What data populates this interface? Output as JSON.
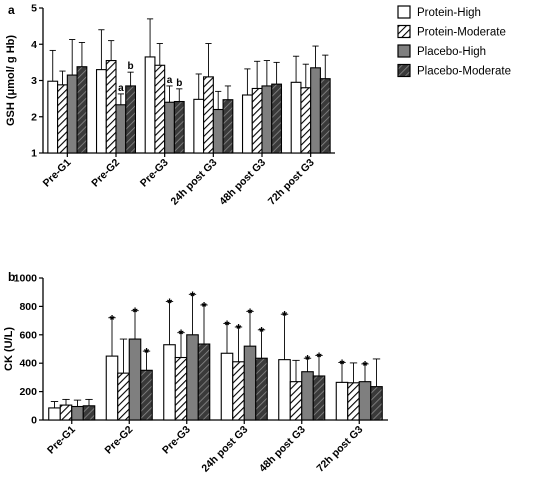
{
  "legend": [
    {
      "name": "Protein-High",
      "pattern": "white"
    },
    {
      "name": "Protein-Moderate",
      "pattern": "hatch"
    },
    {
      "name": "Placebo-High",
      "pattern": "gray"
    },
    {
      "name": "Placebo-Moderate",
      "pattern": "darkhatch"
    }
  ],
  "chart_data": [
    {
      "panel": "a",
      "type": "bar",
      "ylabel": "GSH (μmol/ g Hb)",
      "ylim": [
        1,
        5
      ],
      "yticks": [
        1,
        2,
        3,
        4,
        5
      ],
      "categories": [
        "Pre-G1",
        "Pre-G2",
        "Pre-G3",
        "24h post G3",
        "48h post G3",
        "72h post G3"
      ],
      "series": [
        {
          "name": "Protein-High",
          "values": [
            2.98,
            3.3,
            3.65,
            2.48,
            2.6,
            2.95
          ],
          "errors": [
            0.85,
            1.1,
            1.05,
            0.7,
            0.72,
            0.72
          ],
          "annotations": [
            "",
            "",
            "",
            "",
            "",
            ""
          ]
        },
        {
          "name": "Protein-Moderate",
          "values": [
            2.88,
            3.55,
            3.42,
            3.1,
            2.78,
            2.8
          ],
          "errors": [
            0.38,
            0.55,
            0.6,
            0.92,
            0.75,
            0.65
          ],
          "annotations": [
            "",
            "",
            "",
            "",
            "",
            ""
          ]
        },
        {
          "name": "Placebo-High",
          "values": [
            3.15,
            2.33,
            2.4,
            2.2,
            2.85,
            3.35
          ],
          "errors": [
            0.98,
            0.3,
            0.45,
            0.5,
            0.7,
            0.6
          ],
          "annotations": [
            "",
            "a",
            "a",
            "",
            "",
            ""
          ]
        },
        {
          "name": "Placebo-Moderate",
          "values": [
            3.38,
            2.85,
            2.42,
            2.47,
            2.9,
            3.05
          ],
          "errors": [
            0.67,
            0.38,
            0.35,
            0.38,
            0.6,
            0.65
          ],
          "annotations": [
            "",
            "b",
            "b",
            "",
            "",
            ""
          ]
        }
      ]
    },
    {
      "panel": "b",
      "type": "bar",
      "ylabel": "CK (U/L)",
      "ylim": [
        0,
        1000
      ],
      "yticks": [
        0,
        200,
        400,
        600,
        800,
        1000
      ],
      "categories": [
        "Pre-G1",
        "Pre-G2",
        "Pre-G3",
        "24h post G3",
        "48h post G3",
        "72h post G3"
      ],
      "series": [
        {
          "name": "Protein-High",
          "values": [
            85,
            450,
            530,
            470,
            425,
            265
          ],
          "errors": [
            45,
            270,
            305,
            210,
            320,
            140
          ],
          "annotations": [
            "",
            "*",
            "*",
            "*",
            "*",
            "*"
          ]
        },
        {
          "name": "Protein-Moderate",
          "values": [
            105,
            330,
            440,
            410,
            270,
            262
          ],
          "errors": [
            40,
            240,
            175,
            245,
            150,
            140
          ],
          "annotations": [
            "",
            "",
            "*",
            "*",
            "",
            ""
          ]
        },
        {
          "name": "Placebo-High",
          "values": [
            95,
            570,
            600,
            520,
            340,
            270
          ],
          "errors": [
            45,
            200,
            285,
            245,
            95,
            125
          ],
          "annotations": [
            "",
            "*",
            "*",
            "*",
            "*",
            "*"
          ]
        },
        {
          "name": "Placebo-Moderate",
          "values": [
            100,
            350,
            535,
            435,
            310,
            235
          ],
          "errors": [
            45,
            135,
            275,
            200,
            145,
            195
          ],
          "annotations": [
            "",
            "*",
            "*",
            "*",
            "*",
            ""
          ]
        }
      ]
    }
  ]
}
